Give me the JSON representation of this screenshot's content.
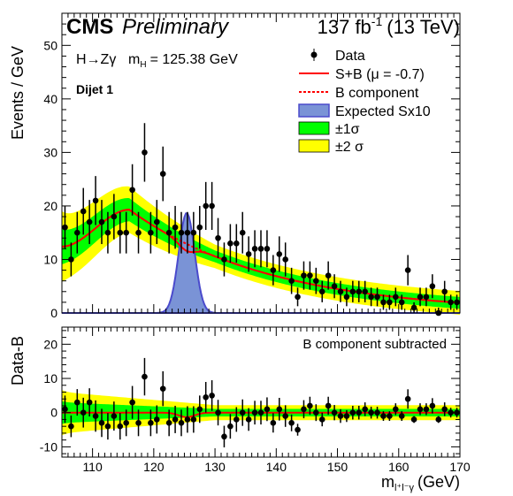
{
  "header": {
    "cms": "CMS",
    "preliminary": "Preliminary",
    "lumi_prefix": "137 fb",
    "lumi_exp": "-1",
    "lumi_suffix": "(13 TeV)"
  },
  "annotations": {
    "process": "H→Zγ",
    "mass_label": "m",
    "mass_sub": "H",
    "mass_value": "= 125.38 GeV",
    "category": "Dijet 1",
    "residual_note": "B component subtracted"
  },
  "legend": {
    "data": "Data",
    "sb": "S+B (μ = -0.7)",
    "bcomp": "B component",
    "expected": "Expected Sx10",
    "one_sigma": "±1σ",
    "two_sigma": "±2 σ"
  },
  "axes": {
    "ylabel_top": "Events / GeV",
    "ylabel_bottom": "Data-B",
    "xlabel_main": "m",
    "xlabel_sub": "l⁺l⁻γ",
    "xlabel_unit": "(GeV)"
  },
  "colors": {
    "fit": "#ff0000",
    "band1": "#00ff00",
    "band2": "#ffff00",
    "signal_fill": "#7a93d6",
    "signal_line": "#4a4acc",
    "data": "#000000"
  },
  "chart_data": {
    "type": "scatter",
    "xlim": [
      105,
      170
    ],
    "x_ticks": [
      110,
      120,
      130,
      140,
      150,
      160,
      170
    ],
    "top": {
      "ylim": [
        0,
        56
      ],
      "y_ticks": [
        0,
        10,
        20,
        30,
        40,
        50
      ]
    },
    "bottom": {
      "ylim": [
        -13,
        25
      ],
      "y_ticks": [
        -10,
        0,
        10,
        20
      ]
    },
    "data_points": {
      "x": [
        105.5,
        106.5,
        107.5,
        108.5,
        109.5,
        110.5,
        111.5,
        112.5,
        113.5,
        114.5,
        115.5,
        116.5,
        117.5,
        118.5,
        119.5,
        120.5,
        121.5,
        122.5,
        123.5,
        124.5,
        125.5,
        126.5,
        127.5,
        128.5,
        129.5,
        130.5,
        131.5,
        132.5,
        133.5,
        134.5,
        135.5,
        136.5,
        137.5,
        138.5,
        139.5,
        140.5,
        141.5,
        142.5,
        143.5,
        144.5,
        145.5,
        146.5,
        147.5,
        148.5,
        149.5,
        150.5,
        151.5,
        152.5,
        153.5,
        154.5,
        155.5,
        156.5,
        157.5,
        158.5,
        159.5,
        160.5,
        161.5,
        162.5,
        163.5,
        164.5,
        165.5,
        166.5,
        167.5,
        168.5,
        169.5
      ],
      "y": [
        16,
        10,
        15,
        19,
        17,
        21,
        17,
        15,
        18,
        15,
        15,
        23,
        15,
        30,
        15,
        17,
        26,
        15,
        16,
        15,
        15,
        15,
        16,
        20,
        20,
        14,
        10,
        13,
        13,
        15,
        11,
        12,
        12,
        12,
        8,
        11,
        10,
        6,
        3,
        7,
        7,
        6,
        4,
        7,
        5,
        4,
        3,
        4,
        4,
        4,
        3,
        3,
        2,
        2,
        3,
        2,
        8,
        1,
        3,
        3,
        5,
        0,
        4,
        2,
        2
      ]
    },
    "fit": {
      "name": "S+B (μ = -0.7)",
      "bkg_peak_x": 116,
      "bkg_peak_y": 19.3,
      "bkg_tail_y_at_170": 1.9
    },
    "expected_signal_x10": {
      "name": "Expected Sx10",
      "mean": 125.38,
      "peak": 18.7,
      "sigma": 1.3
    },
    "residuals": {
      "x": [
        105.5,
        106.5,
        107.5,
        108.5,
        109.5,
        110.5,
        111.5,
        112.5,
        113.5,
        114.5,
        115.5,
        116.5,
        117.5,
        118.5,
        119.5,
        120.5,
        121.5,
        122.5,
        123.5,
        124.5,
        125.5,
        126.5,
        127.5,
        128.5,
        129.5,
        130.5,
        131.5,
        132.5,
        133.5,
        134.5,
        135.5,
        136.5,
        137.5,
        138.5,
        139.5,
        140.5,
        141.5,
        142.5,
        143.5,
        144.5,
        145.5,
        146.5,
        147.5,
        148.5,
        149.5,
        150.5,
        151.5,
        152.5,
        153.5,
        154.5,
        155.5,
        156.5,
        157.5,
        158.5,
        159.5,
        160.5,
        161.5,
        162.5,
        163.5,
        164.5,
        165.5,
        166.5,
        167.5,
        168.5,
        169.5
      ],
      "y": [
        1,
        -4,
        3,
        0,
        3,
        -1,
        -3,
        -4,
        -1,
        -4,
        -3,
        3,
        -3,
        10.5,
        -3,
        -2,
        7,
        -3,
        -2,
        -3,
        -2,
        -2,
        1,
        4.5,
        5,
        0,
        -7,
        -4,
        -2,
        0,
        -2,
        0,
        0,
        1,
        -3,
        1,
        -1,
        -3,
        -5,
        1,
        2,
        0,
        -2,
        2,
        0,
        -1,
        -1,
        0,
        0,
        1,
        0,
        0,
        -1,
        -1,
        1,
        -1,
        4,
        -2,
        1,
        1,
        2,
        -2,
        1,
        0,
        0
      ]
    }
  }
}
